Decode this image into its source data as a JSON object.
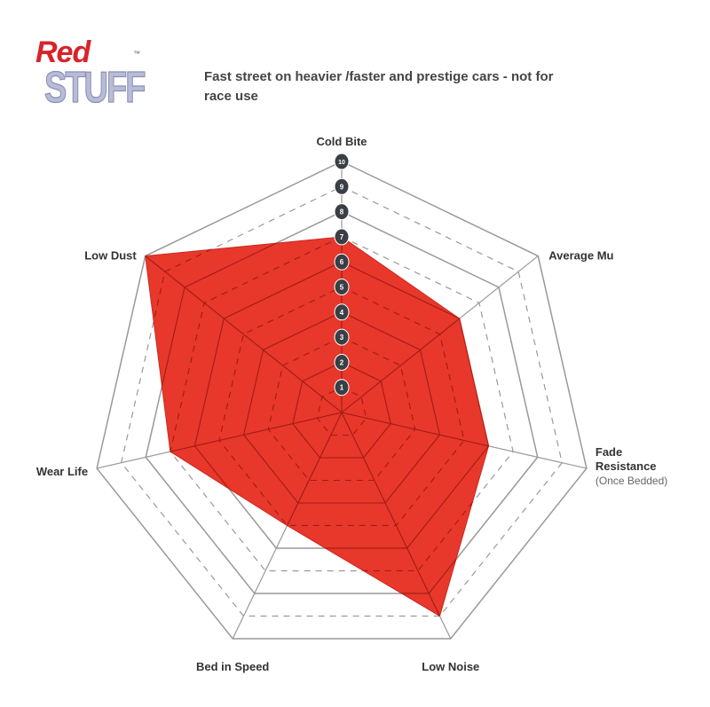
{
  "logo": {
    "line1": "Red",
    "line2": "STUFF",
    "tm": "™"
  },
  "subtitle": "Fast street on heavier /faster and prestige cars - not for race use",
  "colors": {
    "fill": "#e8372b",
    "grid": "#999999",
    "badge": "#3a3f45"
  },
  "chart_data": {
    "type": "radar",
    "axes": [
      "Cold Bite",
      "Average Mu",
      "Fade Resistance",
      "Low Noise",
      "Bed in Speed",
      "Wear Life",
      "Low Dust"
    ],
    "axis_sublabels": {
      "Fade Resistance": "(Once Bedded)"
    },
    "values": [
      7,
      6,
      6,
      9,
      5,
      7,
      10
    ],
    "range": [
      0,
      10
    ],
    "tick_labels": [
      "1",
      "2",
      "3",
      "4",
      "5",
      "6",
      "7",
      "8",
      "9",
      "10"
    ],
    "grid": true
  }
}
